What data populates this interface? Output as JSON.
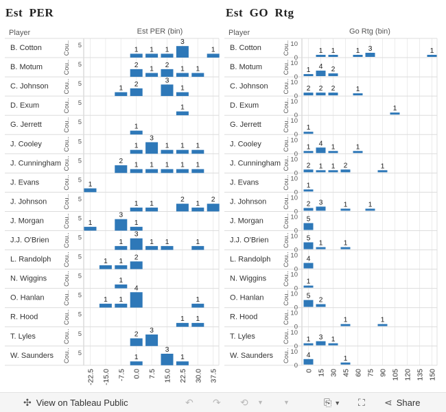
{
  "left_title": "Est  PER",
  "right_title": "Est  GO  Rtg",
  "chart_data": [
    {
      "type": "bar",
      "title": "Est  PER",
      "row_header": "Player",
      "column_header": "Est PER (bin)",
      "y_axis_label": "Cou..",
      "y_tick": "5",
      "bins": [
        "-22.5",
        "-15.0",
        "-7.5",
        "0.0",
        "7.5",
        "15.0",
        "22.5",
        "30.0",
        "37.5"
      ],
      "ymax": 5,
      "color": "#2e78b8",
      "rows": [
        {
          "player": "B. Cotton",
          "values": [
            0,
            0,
            0,
            1,
            1,
            1,
            3,
            0,
            1
          ]
        },
        {
          "player": "B. Motum",
          "values": [
            0,
            0,
            0,
            2,
            1,
            2,
            1,
            1,
            0
          ]
        },
        {
          "player": "C. Johnson",
          "values": [
            0,
            0,
            1,
            2,
            0,
            3,
            1,
            0,
            0
          ]
        },
        {
          "player": "D. Exum",
          "values": [
            0,
            0,
            0,
            0,
            0,
            0,
            1,
            0,
            0
          ]
        },
        {
          "player": "G. Jerrett",
          "values": [
            0,
            0,
            0,
            1,
            0,
            0,
            0,
            0,
            0
          ]
        },
        {
          "player": "J. Cooley",
          "values": [
            0,
            0,
            0,
            1,
            3,
            1,
            1,
            1,
            0
          ]
        },
        {
          "player": "J. Cunningham",
          "values": [
            0,
            0,
            2,
            1,
            1,
            1,
            1,
            1,
            0
          ]
        },
        {
          "player": "J. Evans",
          "values": [
            1,
            0,
            0,
            0,
            0,
            0,
            0,
            0,
            0
          ]
        },
        {
          "player": "J. Johnson",
          "values": [
            0,
            0,
            0,
            1,
            1,
            0,
            2,
            1,
            2
          ]
        },
        {
          "player": "J. Morgan",
          "values": [
            1,
            0,
            3,
            1,
            0,
            0,
            0,
            0,
            0
          ]
        },
        {
          "player": "J.J. O'Brien",
          "values": [
            0,
            0,
            1,
            3,
            1,
            1,
            0,
            1,
            0
          ]
        },
        {
          "player": "L. Randolph",
          "values": [
            0,
            1,
            1,
            2,
            0,
            0,
            0,
            0,
            0
          ]
        },
        {
          "player": "N. Wiggins",
          "values": [
            0,
            0,
            1,
            0,
            0,
            0,
            0,
            0,
            0
          ]
        },
        {
          "player": "O. Hanlan",
          "values": [
            0,
            1,
            1,
            4,
            0,
            0,
            0,
            1,
            0
          ]
        },
        {
          "player": "R. Hood",
          "values": [
            0,
            0,
            0,
            0,
            0,
            0,
            1,
            1,
            0
          ]
        },
        {
          "player": "T. Lyles",
          "values": [
            0,
            0,
            0,
            2,
            3,
            0,
            0,
            0,
            0
          ]
        },
        {
          "player": "W. Saunders",
          "values": [
            0,
            0,
            0,
            1,
            0,
            3,
            1,
            0,
            0
          ]
        }
      ]
    },
    {
      "type": "bar",
      "title": "Est  GO  Rtg",
      "row_header": "Player",
      "column_header": "Go Rtg (bin)",
      "y_axis_label": "Cou..",
      "y_ticks": [
        "0",
        "10"
      ],
      "bins": [
        "0",
        "15",
        "30",
        "45",
        "60",
        "75",
        "90",
        "105",
        "120",
        "135",
        "150"
      ],
      "ymax": 10,
      "color": "#2e78b8",
      "rows": [
        {
          "player": "B. Cotton",
          "values": [
            0,
            1,
            1,
            0,
            1,
            3,
            0,
            0,
            0,
            0,
            1
          ]
        },
        {
          "player": "B. Motum",
          "values": [
            1,
            4,
            2,
            0,
            0,
            0,
            0,
            0,
            0,
            0,
            0
          ]
        },
        {
          "player": "C. Johnson",
          "values": [
            2,
            2,
            2,
            0,
            1,
            0,
            0,
            0,
            0,
            0,
            0
          ]
        },
        {
          "player": "D. Exum",
          "values": [
            0,
            0,
            0,
            0,
            0,
            0,
            0,
            1,
            0,
            0,
            0
          ]
        },
        {
          "player": "G. Jerrett",
          "values": [
            1,
            0,
            0,
            0,
            0,
            0,
            0,
            0,
            0,
            0,
            0
          ]
        },
        {
          "player": "J. Cooley",
          "values": [
            1,
            4,
            1,
            0,
            1,
            0,
            0,
            0,
            0,
            0,
            0
          ]
        },
        {
          "player": "J. Cunningham",
          "values": [
            2,
            1,
            1,
            2,
            0,
            0,
            1,
            0,
            0,
            0,
            0
          ]
        },
        {
          "player": "J. Evans",
          "values": [
            1,
            0,
            0,
            0,
            0,
            0,
            0,
            0,
            0,
            0,
            0
          ]
        },
        {
          "player": "J. Johnson",
          "values": [
            2,
            3,
            0,
            1,
            0,
            1,
            0,
            0,
            0,
            0,
            0
          ]
        },
        {
          "player": "J. Morgan",
          "values": [
            5,
            0,
            0,
            0,
            0,
            0,
            0,
            0,
            0,
            0,
            0
          ]
        },
        {
          "player": "J.J. O'Brien",
          "values": [
            5,
            1,
            0,
            1,
            0,
            0,
            0,
            0,
            0,
            0,
            0
          ]
        },
        {
          "player": "L. Randolph",
          "values": [
            4,
            0,
            0,
            0,
            0,
            0,
            0,
            0,
            0,
            0,
            0
          ]
        },
        {
          "player": "N. Wiggins",
          "values": [
            1,
            0,
            0,
            0,
            0,
            0,
            0,
            0,
            0,
            0,
            0
          ]
        },
        {
          "player": "O. Hanlan",
          "values": [
            5,
            2,
            0,
            0,
            0,
            0,
            0,
            0,
            0,
            0,
            0
          ]
        },
        {
          "player": "R. Hood",
          "values": [
            0,
            0,
            0,
            1,
            0,
            0,
            1,
            0,
            0,
            0,
            0
          ]
        },
        {
          "player": "T. Lyles",
          "values": [
            1,
            3,
            1,
            0,
            0,
            0,
            0,
            0,
            0,
            0,
            0
          ]
        },
        {
          "player": "W. Saunders",
          "values": [
            4,
            0,
            0,
            1,
            0,
            0,
            0,
            0,
            0,
            0,
            0
          ]
        }
      ]
    }
  ],
  "toolbar": {
    "view_label": "View on Tableau Public",
    "share_label": "Share",
    "icons": {
      "tableau": "tableau-logo-icon",
      "undo": "undo-icon",
      "redo": "redo-icon",
      "revert": "revert-icon",
      "download": "download-icon",
      "fullscreen": "fullscreen-icon",
      "share": "share-icon"
    }
  }
}
